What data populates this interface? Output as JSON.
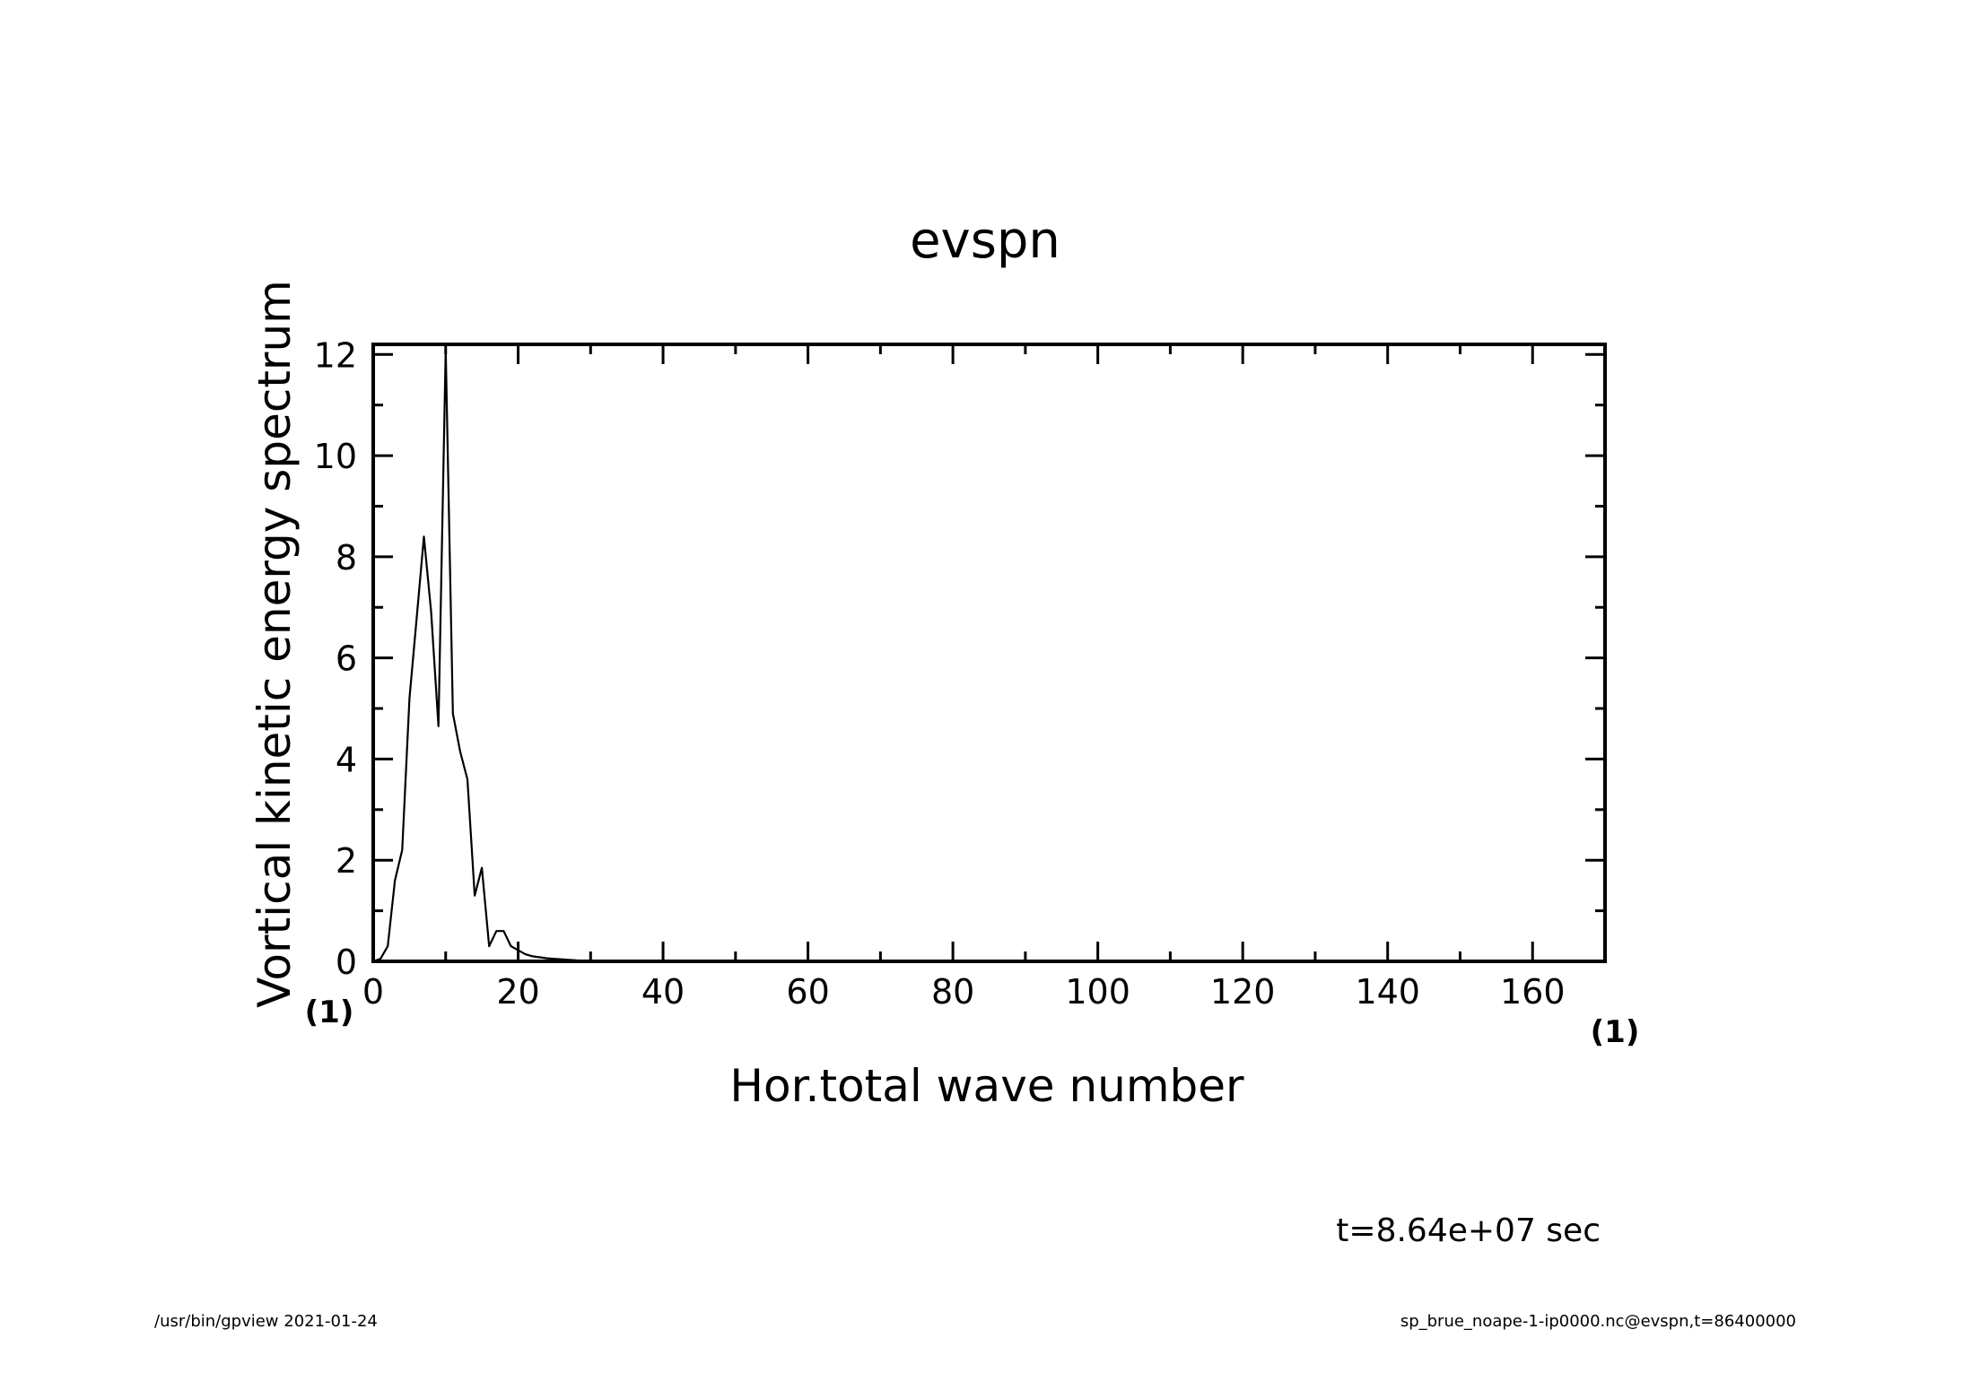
{
  "chart_data": {
    "type": "line",
    "title": "evspn",
    "xlabel": "Hor.total wave number",
    "ylabel": "Vortical kinetic energy spectrum",
    "x_unit": "(1)",
    "y_unit": "(1)",
    "xlim": [
      0,
      170
    ],
    "ylim": [
      0,
      12.2
    ],
    "xticks": [
      0,
      20,
      40,
      60,
      80,
      100,
      120,
      140,
      160
    ],
    "yticks": [
      0,
      2,
      4,
      6,
      8,
      10,
      12
    ],
    "grid": false,
    "series": [
      {
        "x": [
          0,
          1,
          2,
          3,
          4,
          5,
          6,
          7,
          8,
          9,
          10,
          11,
          12,
          13,
          14,
          15,
          16,
          17,
          18,
          19,
          20,
          21,
          22,
          23,
          24,
          25,
          26,
          27,
          28,
          29,
          30,
          32,
          34,
          36,
          40,
          50,
          60,
          80,
          100,
          120,
          140,
          160,
          170
        ],
        "y": [
          0,
          0.05,
          0.3,
          1.6,
          2.2,
          5.2,
          6.8,
          8.4,
          6.9,
          4.65,
          12.1,
          4.9,
          4.15,
          3.6,
          1.3,
          1.85,
          0.3,
          0.6,
          0.6,
          0.3,
          0.22,
          0.14,
          0.1,
          0.08,
          0.06,
          0.05,
          0.04,
          0.03,
          0.02,
          0.015,
          0.01,
          0.006,
          0.004,
          0.002,
          0.001,
          0,
          0,
          0,
          0,
          0,
          0,
          0,
          0
        ]
      }
    ]
  },
  "annotation": {
    "time": "t=8.64e+07 sec"
  },
  "footer": {
    "left": "/usr/bin/gpview   2021-01-24",
    "right": "sp_brue_noape-1-ip0000.nc@evspn,t=86400000"
  }
}
